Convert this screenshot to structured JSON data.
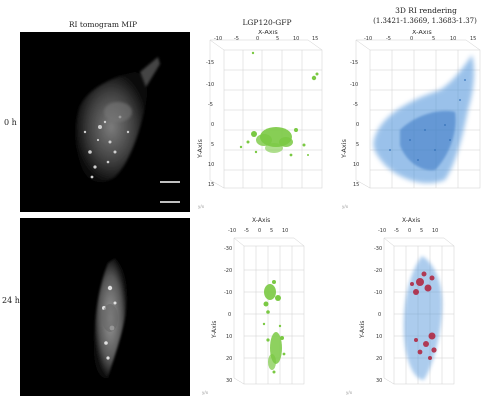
{
  "columns": {
    "c1": "RI tomogram MIP",
    "c2": "LGP120-GFP",
    "c3_line1": "3D RI rendering",
    "c3_line2": "(1.3421-1.3669, 1.3683-1.37)"
  },
  "rows": {
    "r1": "0 h",
    "r2": "24 h"
  },
  "axes": {
    "x_axis": "X-Axis",
    "y_axis": "Y-Axis",
    "top_x_ticks": [
      "-10",
      "-5",
      "0",
      "5",
      "10",
      "15"
    ],
    "top_y_ticks": [
      "-15",
      "-10",
      "-5",
      "0",
      "5",
      "10",
      "15"
    ],
    "bottom_x_ticks": [
      "-10",
      "-5",
      "0",
      "5",
      "10"
    ],
    "bottom_y_ticks": [
      "-30",
      "-20",
      "-10",
      "0",
      "10",
      "20",
      "30"
    ],
    "corner_mark": "y/x"
  },
  "colors": {
    "gfp": "#7ac943",
    "ri": "#4a90d9",
    "red": "#b0203a"
  }
}
